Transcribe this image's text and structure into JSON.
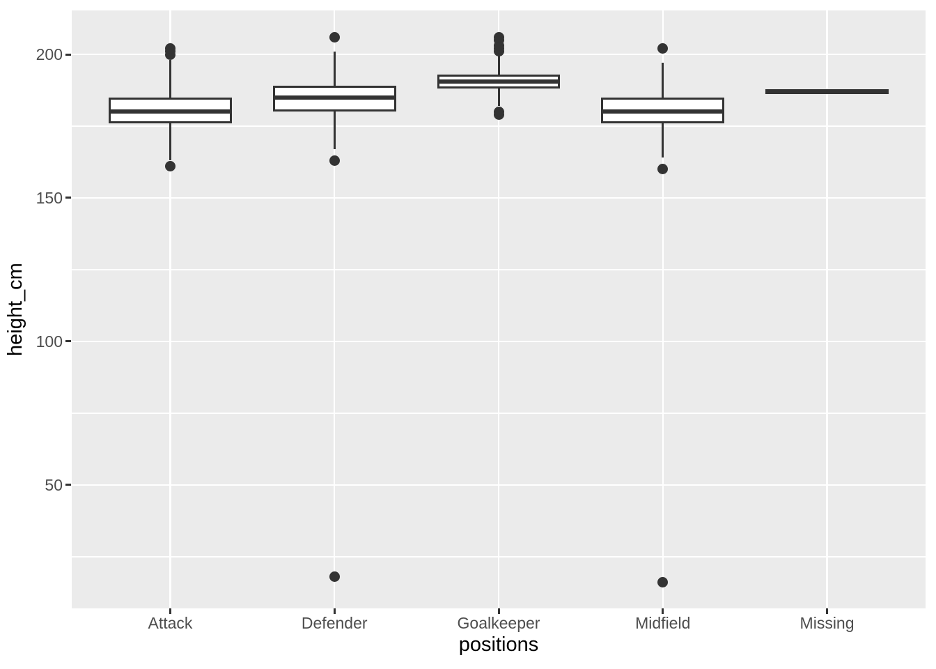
{
  "chart_data": {
    "type": "boxplot",
    "title": "",
    "xlabel": "positions",
    "ylabel": "height_cm",
    "categories": [
      "Attack",
      "Defender",
      "Goalkeeper",
      "Midfield",
      "Missing"
    ],
    "y_major_ticks": [
      200,
      150,
      100,
      50
    ],
    "y_minor_gridlines": [
      175,
      125,
      75,
      25
    ],
    "ylim": [
      7,
      215.3
    ],
    "grid": true,
    "legend_position": "none",
    "colors": {
      "panel_bg": "#EBEBEB",
      "grid": "#FFFFFF",
      "box_stroke": "#333333",
      "box_fill": "#FFFFFF",
      "tick_label": "#4D4D4D",
      "tick_mark": "#333333",
      "axis_title": "#000000"
    },
    "boxes": [
      {
        "category": "Attack",
        "whisker_low": 163,
        "q1": 176,
        "median": 180,
        "q3": 185,
        "whisker_high": 198,
        "outliers_high": [
          200,
          201,
          202
        ],
        "outliers_low": [
          161
        ]
      },
      {
        "category": "Defender",
        "whisker_low": 167,
        "q1": 180,
        "median": 185,
        "q3": 189,
        "whisker_high": 201,
        "outliers_high": [
          206
        ],
        "outliers_low": [
          163,
          18
        ]
      },
      {
        "category": "Goalkeeper",
        "whisker_low": 182,
        "q1": 188,
        "median": 190.5,
        "q3": 193,
        "whisker_high": 200,
        "outliers_high": [
          201,
          202,
          203,
          205,
          206
        ],
        "outliers_low": [
          179,
          180
        ]
      },
      {
        "category": "Midfield",
        "whisker_low": 164,
        "q1": 176,
        "median": 180,
        "q3": 185,
        "whisker_high": 197,
        "outliers_high": [
          202
        ],
        "outliers_low": [
          160,
          16
        ]
      },
      {
        "category": "Missing",
        "median": 187
      }
    ]
  }
}
